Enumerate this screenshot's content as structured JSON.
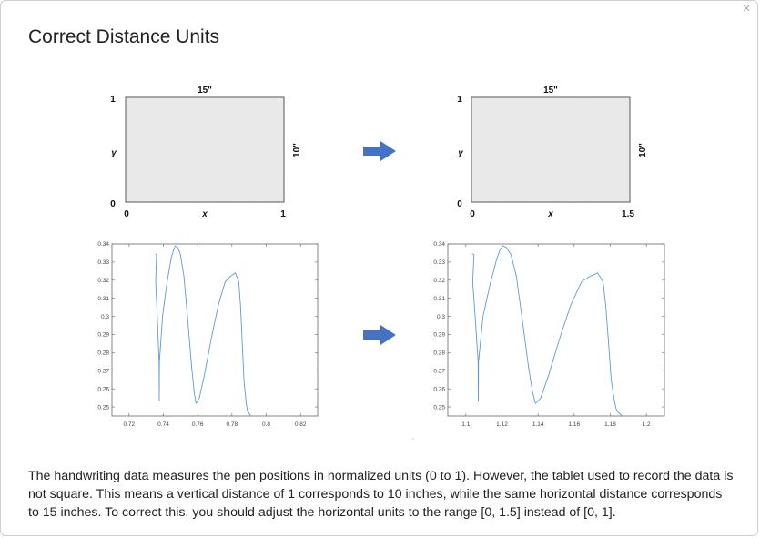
{
  "dialog": {
    "title": "Correct Distance Units",
    "close_label": "×",
    "description": "The handwriting data measures the pen positions in normalized units (0 to 1). However, the tablet used to record the data is not square. This means a vertical distance of 1 corresponds to 10 inches, while the same horizontal distance corresponds to 15 inches. To correct this, you should adjust the horizontal units to the range [0, 1.5] instead of [0, 1]."
  },
  "colors": {
    "arrow": "#4472c4",
    "trace": "#5b9bd5",
    "tablet_fill": "#ececec"
  },
  "tablets": [
    {
      "width_label": "15\"",
      "height_label": "10\"",
      "x_label": "x",
      "y_label": "y",
      "x_min": "0",
      "x_max": "1",
      "y_min": "0",
      "y_max": "1"
    },
    {
      "width_label": "15\"",
      "height_label": "10\"",
      "x_label": "x",
      "y_label": "y",
      "x_min": "0",
      "x_max": "1.5",
      "y_min": "0",
      "y_max": "1"
    }
  ],
  "chart_data": [
    {
      "type": "line",
      "xlim": [
        0.71,
        0.83
      ],
      "ylim": [
        0.245,
        0.34
      ],
      "x_ticks": [
        "0.72",
        "0.74",
        "0.76",
        "0.78",
        "0.8",
        "0.82"
      ],
      "y_ticks": [
        "0.34",
        "0.33",
        "0.32",
        "0.31",
        "0.3",
        "0.29",
        "0.28",
        "0.27",
        "0.26",
        "0.25"
      ],
      "series": [
        {
          "x": [
            0.7353,
            0.736,
            0.7355,
            0.7362,
            0.7375,
            0.7376,
            0.7377,
            0.7395,
            0.742,
            0.7445,
            0.746,
            0.747,
            0.7485,
            0.75,
            0.752,
            0.7545,
            0.7565,
            0.758,
            0.759,
            0.7595,
            0.761,
            0.764,
            0.768,
            0.772,
            0.776,
            0.779,
            0.782,
            0.784,
            0.785,
            0.7858,
            0.787,
            0.788,
            0.7885,
            0.789,
            0.791
          ],
          "y": [
            0.3345,
            0.334,
            0.319,
            0.305,
            0.275,
            0.253,
            0.275,
            0.3,
            0.318,
            0.332,
            0.337,
            0.339,
            0.338,
            0.334,
            0.322,
            0.295,
            0.272,
            0.258,
            0.252,
            0.2525,
            0.255,
            0.268,
            0.288,
            0.306,
            0.319,
            0.322,
            0.324,
            0.319,
            0.306,
            0.29,
            0.265,
            0.255,
            0.251,
            0.248,
            0.245
          ]
        }
      ]
    },
    {
      "type": "line",
      "xlim": [
        1.09,
        1.21
      ],
      "ylim": [
        0.245,
        0.34
      ],
      "x_ticks": [
        "1.1",
        "1.12",
        "1.14",
        "1.16",
        "1.18",
        "1.2"
      ],
      "y_ticks": [
        "0.34",
        "0.33",
        "0.32",
        "0.31",
        "0.3",
        "0.29",
        "0.28",
        "0.27",
        "0.26",
        "0.25"
      ],
      "series": [
        {
          "x": [
            1.1035,
            1.1045,
            1.1038,
            1.1048,
            1.1068,
            1.1069,
            1.107,
            1.1095,
            1.1135,
            1.1172,
            1.119,
            1.1205,
            1.1225,
            1.125,
            1.128,
            1.1317,
            1.1347,
            1.137,
            1.1385,
            1.1393,
            1.1415,
            1.146,
            1.152,
            1.158,
            1.164,
            1.1685,
            1.173,
            1.176,
            1.1775,
            1.1787,
            1.1805,
            1.182,
            1.1828,
            1.1835,
            1.1865
          ],
          "y": [
            0.3345,
            0.334,
            0.319,
            0.305,
            0.275,
            0.253,
            0.275,
            0.3,
            0.318,
            0.332,
            0.337,
            0.339,
            0.338,
            0.334,
            0.322,
            0.295,
            0.272,
            0.258,
            0.252,
            0.2525,
            0.255,
            0.268,
            0.288,
            0.306,
            0.319,
            0.322,
            0.324,
            0.319,
            0.306,
            0.29,
            0.265,
            0.255,
            0.251,
            0.248,
            0.245
          ]
        }
      ]
    }
  ]
}
